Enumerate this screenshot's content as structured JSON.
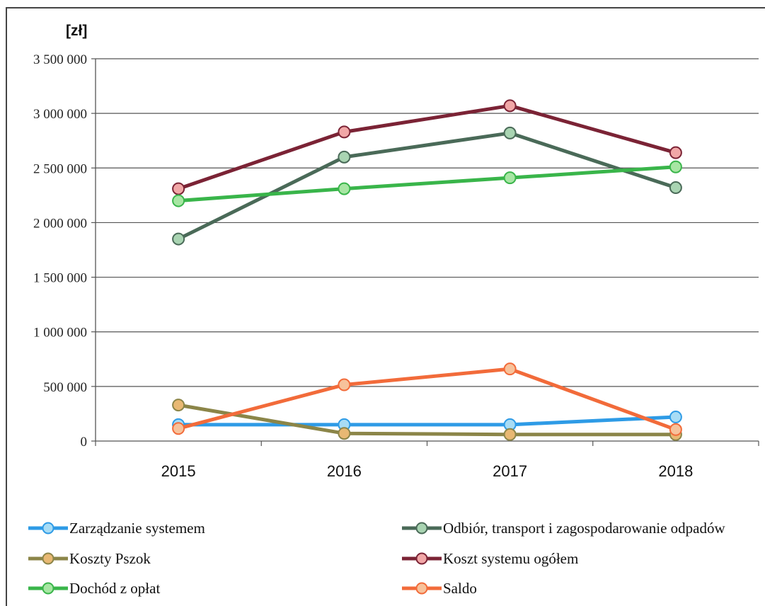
{
  "chart_data": {
    "type": "line",
    "ylabel": "[zł]",
    "categories": [
      "2015",
      "2016",
      "2017",
      "2018"
    ],
    "ylim": [
      0,
      3500000
    ],
    "yticks": [
      0,
      500000,
      1000000,
      1500000,
      2000000,
      2500000,
      3000000,
      3500000
    ],
    "ytick_labels": [
      "0",
      "500 000",
      "1 000 000",
      "1 500 000",
      "2 000 000",
      "2 500 000",
      "3 000 000",
      "3 500 000"
    ],
    "grid": true,
    "legend_position": "bottom",
    "series": [
      {
        "name": "Zarządzanie systemem",
        "values": [
          150000,
          150000,
          150000,
          220000
        ],
        "color": "#2e9be6",
        "marker_fill": "#a8dcf5"
      },
      {
        "name": "Odbiór, transport i zagospodarowanie odpadów",
        "values": [
          1850000,
          2600000,
          2820000,
          2320000
        ],
        "color": "#4a6a58",
        "marker_fill": "#a9d4b2"
      },
      {
        "name": "Koszty Pszok",
        "values": [
          330000,
          70000,
          60000,
          60000
        ],
        "color": "#8b8548",
        "marker_fill": "#e8b873"
      },
      {
        "name": "Koszt systemu ogółem",
        "values": [
          2310000,
          2830000,
          3070000,
          2640000
        ],
        "color": "#7b2335",
        "marker_fill": "#f1a7a7"
      },
      {
        "name": "Dochód z opłat",
        "values": [
          2200000,
          2310000,
          2410000,
          2510000
        ],
        "color": "#39b54a",
        "marker_fill": "#a7e6a3"
      },
      {
        "name": "Saldo",
        "values": [
          115000,
          515000,
          660000,
          105000
        ],
        "color": "#f26b3a",
        "marker_fill": "#f7c29b"
      }
    ]
  }
}
